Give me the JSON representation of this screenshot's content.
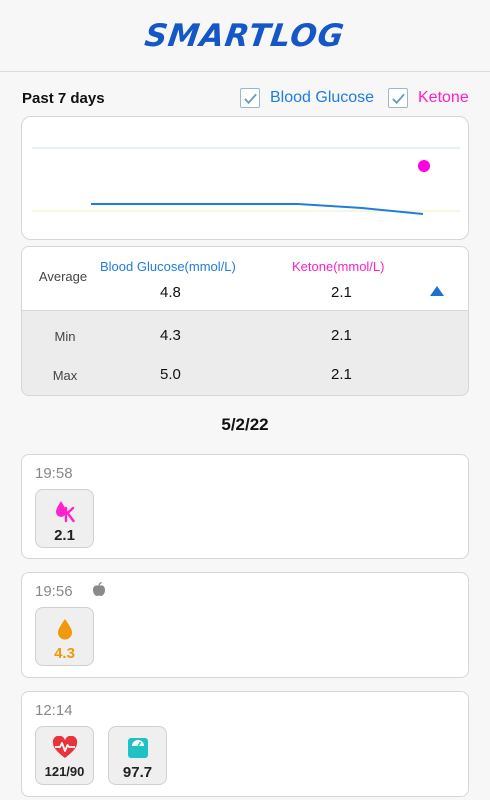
{
  "header": {
    "app_title": "SMARTLOG"
  },
  "period": {
    "label": "Past 7 days",
    "glucose_toggle": {
      "label": "Blood Glucose",
      "checked": true,
      "color": "#1f7de0"
    },
    "ketone_toggle": {
      "label": "Ketone",
      "checked": true,
      "color": "#ff1ec8"
    }
  },
  "chart_data": {
    "type": "line",
    "title": "",
    "xlabel": "",
    "ylabel": "",
    "series": [
      {
        "values": [
          4.8,
          4.8,
          4.8,
          4.8,
          4.6,
          4.3
        ],
        "color": "#1f7de0",
        "marker": "none"
      },
      {
        "values": [
          null,
          null,
          null,
          null,
          null,
          2.1
        ],
        "color": "#ff00e0",
        "marker": "dot"
      }
    ],
    "grid": false,
    "reference_lines": {
      "upper_color": "#c9e3ef",
      "lower_color": "#f3ecc0"
    }
  },
  "stats": {
    "glucose_header": "Blood Glucose(mmol/L)",
    "ketone_header": "Ketone(mmol/L)",
    "average_label": "Average",
    "min_label": "Min",
    "max_label": "Max",
    "average": {
      "glucose": "4.8",
      "ketone": "2.1"
    },
    "min": {
      "glucose": "4.3",
      "ketone": "2.1"
    },
    "max": {
      "glucose": "5.0",
      "ketone": "2.1"
    }
  },
  "date_title": "5/2/22",
  "records": [
    {
      "time": "19:58",
      "items": [
        {
          "icon": "ketone-drop-icon",
          "value": "2.1",
          "color": "#111111"
        }
      ]
    },
    {
      "time": "19:56",
      "meal_icon": "apple-icon",
      "items": [
        {
          "icon": "glucose-drop-icon",
          "value": "4.3",
          "color": "#f2990a"
        }
      ]
    },
    {
      "time": "12:14",
      "items": [
        {
          "icon": "heart-rate-icon",
          "value": "121/90",
          "color": "#111111"
        },
        {
          "icon": "weight-scale-icon",
          "value": "97.7",
          "color": "#111111"
        }
      ]
    }
  ]
}
